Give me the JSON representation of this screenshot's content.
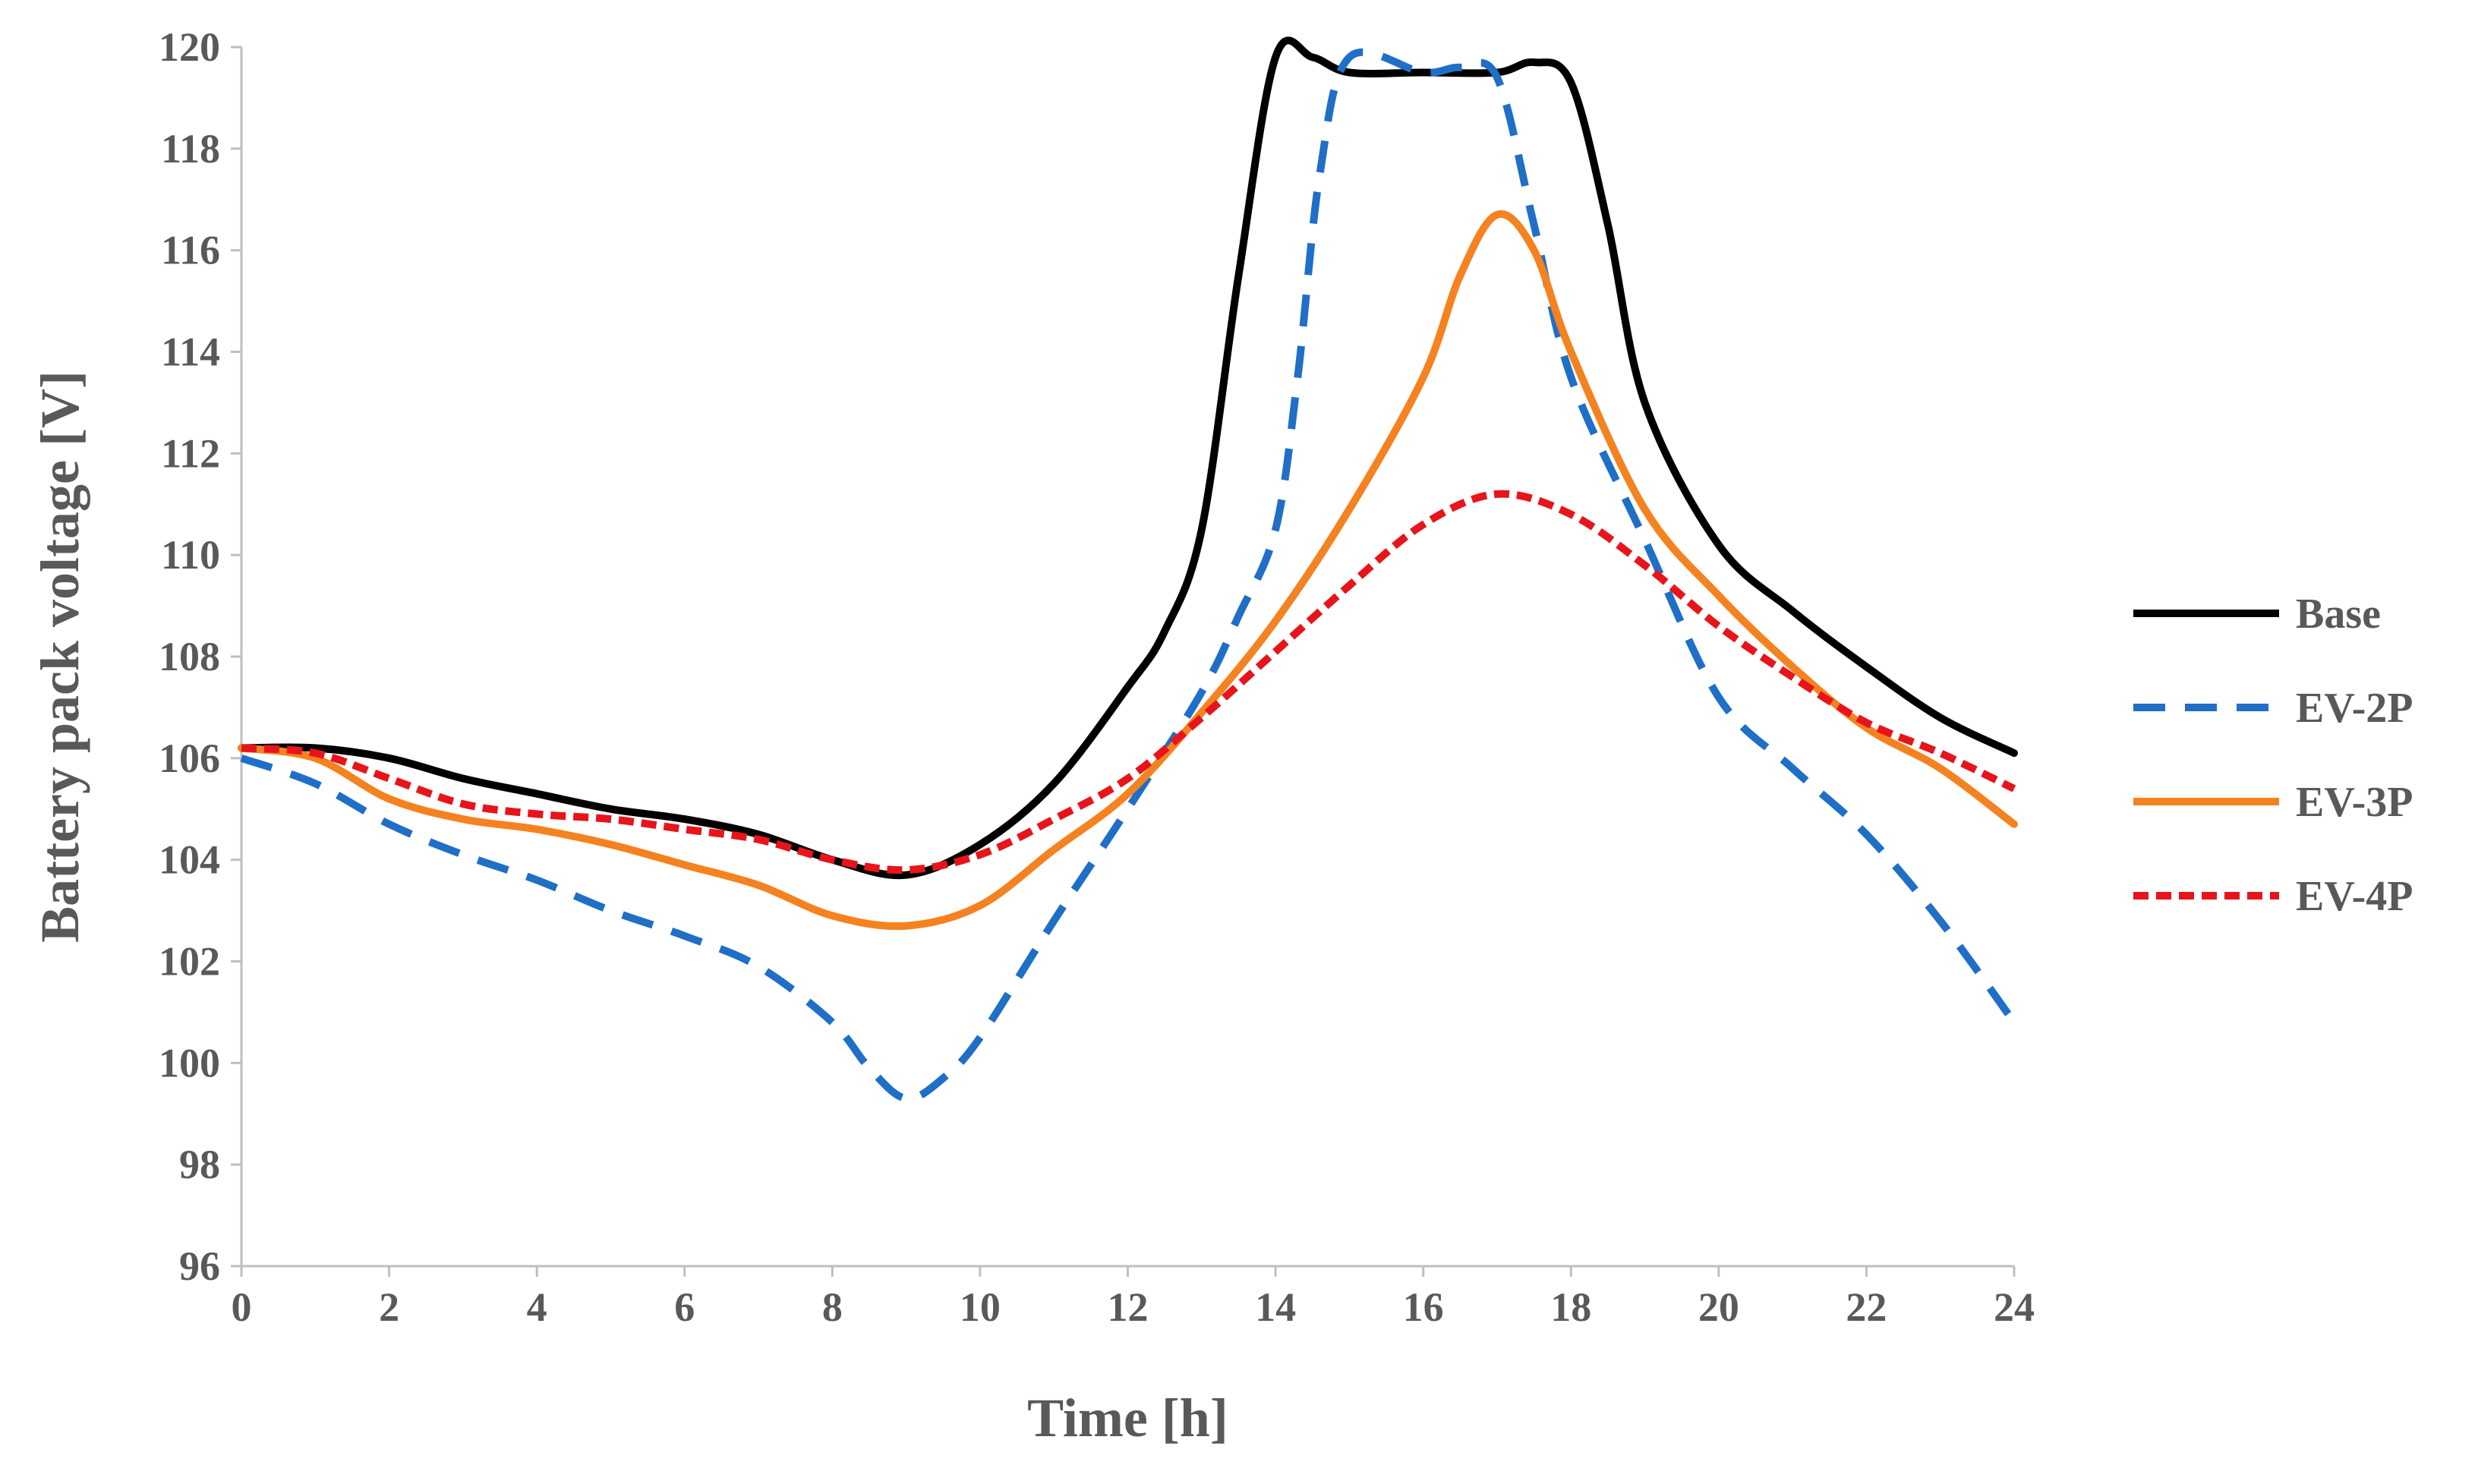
{
  "chart_data": {
    "type": "line",
    "title": "",
    "xlabel": "Time [h]",
    "ylabel": "Battery pack voltage [V]",
    "xlim": [
      0,
      24
    ],
    "ylim": [
      96,
      120
    ],
    "xticks": [
      "0",
      "2",
      "4",
      "6",
      "8",
      "10",
      "12",
      "14",
      "16",
      "18",
      "20",
      "22",
      "24"
    ],
    "yticks": [
      "96",
      "98",
      "100",
      "102",
      "104",
      "106",
      "108",
      "110",
      "112",
      "114",
      "116",
      "118",
      "120"
    ],
    "grid": false,
    "legend": "right",
    "series": [
      {
        "name": "Base",
        "color": "#000000",
        "dash": "solid",
        "x": [
          0,
          1,
          2,
          3,
          4,
          5,
          6,
          7,
          8,
          9,
          10,
          11,
          12,
          12.5,
          13,
          13.5,
          14,
          14.5,
          15,
          16,
          17,
          17.5,
          18,
          18.5,
          19,
          20,
          21,
          22,
          23,
          24
        ],
        "y": [
          106.2,
          106.2,
          106.0,
          105.6,
          105.3,
          105.0,
          104.8,
          104.5,
          104.0,
          103.7,
          104.3,
          105.5,
          107.4,
          108.5,
          110.5,
          115.5,
          119.8,
          119.8,
          119.5,
          119.5,
          119.5,
          119.7,
          119.3,
          116.5,
          113.0,
          110.2,
          108.9,
          107.8,
          106.8,
          106.1
        ]
      },
      {
        "name": "EV-2P",
        "color": "#1f6fc7",
        "dash": "dashed",
        "x": [
          0,
          1,
          2,
          3,
          4,
          5,
          6,
          7,
          8,
          8.5,
          9,
          9.5,
          10,
          11,
          12,
          13,
          13.5,
          14,
          14.3,
          14.6,
          15,
          16,
          16.5,
          17,
          17.5,
          18,
          19,
          20,
          21,
          22,
          23,
          24
        ],
        "y": [
          106.0,
          105.5,
          104.7,
          104.1,
          103.6,
          103.0,
          102.5,
          101.9,
          100.8,
          99.9,
          99.3,
          99.7,
          100.5,
          102.8,
          105.0,
          107.3,
          108.8,
          110.5,
          113.5,
          117.5,
          119.8,
          119.5,
          119.6,
          119.4,
          116.5,
          113.5,
          110.3,
          107.2,
          105.8,
          104.5,
          102.8,
          100.8
        ]
      },
      {
        "name": "EV-3P",
        "color": "#f58220",
        "dash": "solid",
        "x": [
          0,
          1,
          2,
          3,
          4,
          5,
          6,
          7,
          8,
          9,
          10,
          11,
          12,
          13,
          14,
          15,
          16,
          16.5,
          17,
          17.5,
          18,
          19,
          20,
          21,
          22,
          23,
          24
        ],
        "y": [
          106.2,
          106.0,
          105.2,
          104.8,
          104.6,
          104.3,
          103.9,
          103.5,
          102.9,
          102.7,
          103.1,
          104.2,
          105.3,
          106.9,
          108.7,
          110.9,
          113.5,
          115.5,
          116.7,
          116.0,
          114.0,
          110.9,
          109.2,
          107.8,
          106.6,
          105.8,
          104.7
        ]
      },
      {
        "name": "EV-4P",
        "color": "#e8141b",
        "dash": "dotted",
        "x": [
          0,
          1,
          2,
          3,
          4,
          5,
          6,
          7,
          8,
          9,
          10,
          11,
          12,
          13,
          14,
          15,
          16,
          17,
          18,
          19,
          20,
          21,
          22,
          23,
          24
        ],
        "y": [
          106.2,
          106.1,
          105.6,
          105.1,
          104.9,
          104.8,
          104.6,
          104.4,
          104.0,
          103.8,
          104.1,
          104.8,
          105.6,
          106.8,
          108.1,
          109.4,
          110.6,
          111.2,
          110.8,
          109.8,
          108.6,
          107.6,
          106.7,
          106.1,
          105.4
        ]
      }
    ]
  }
}
